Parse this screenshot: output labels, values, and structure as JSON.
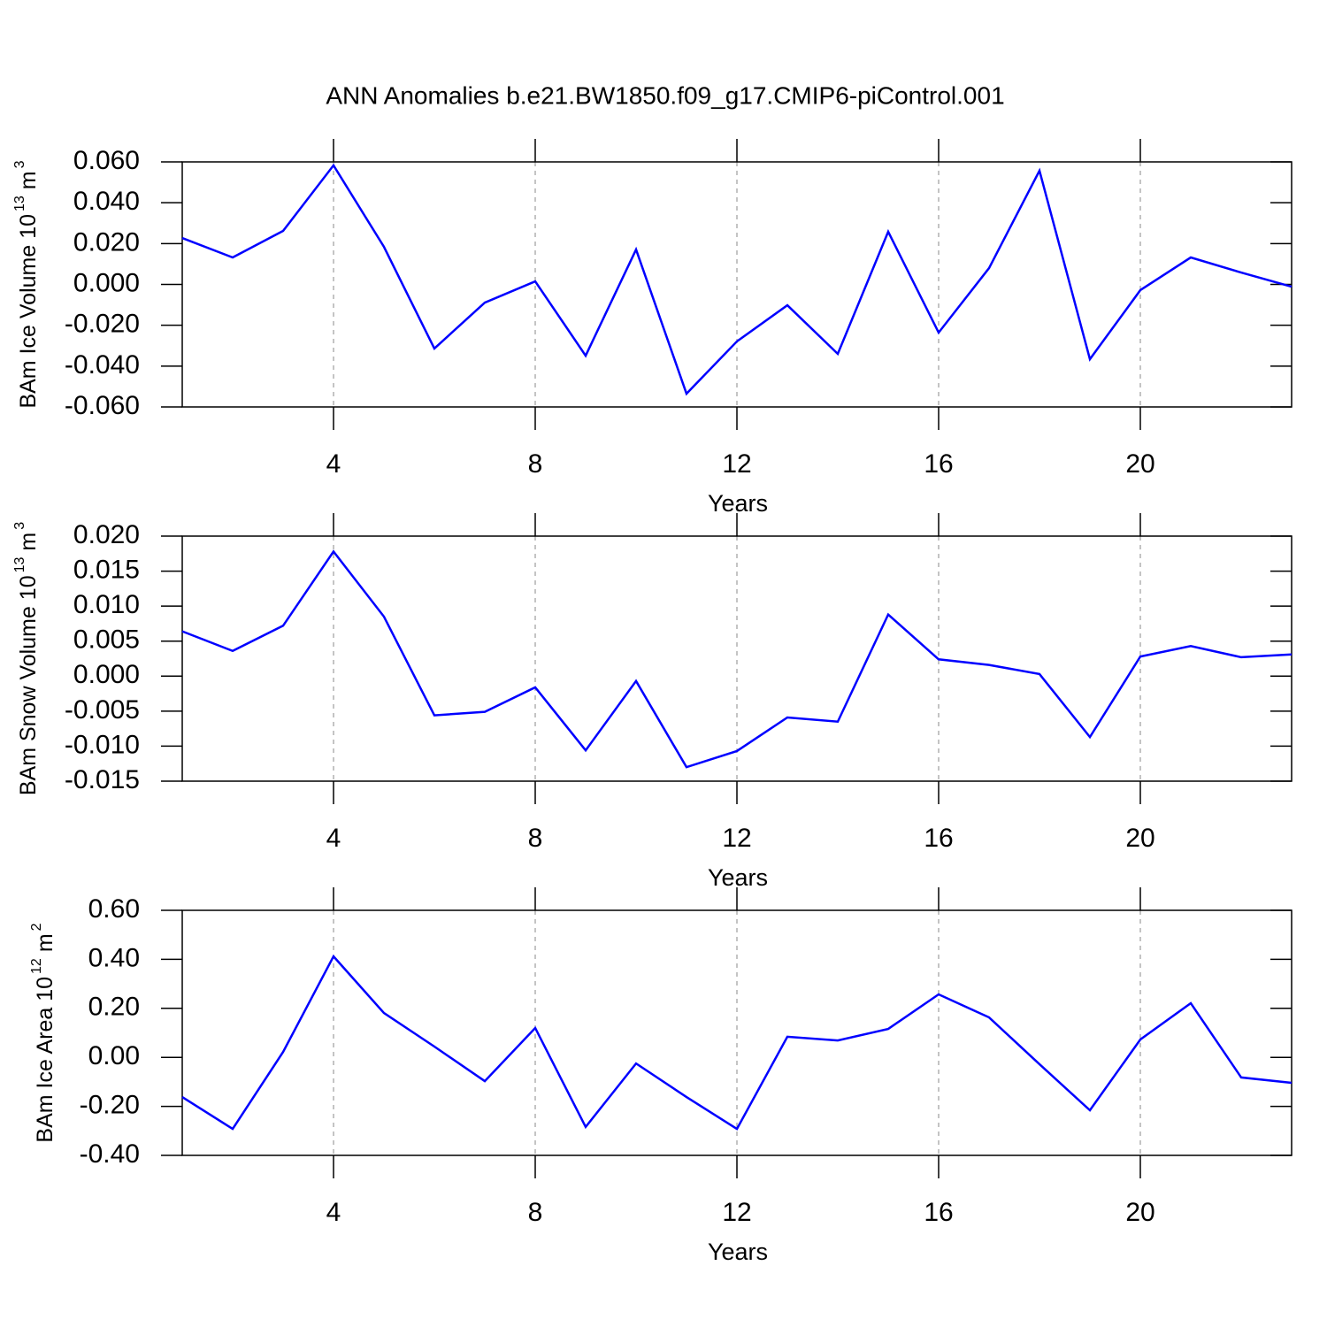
{
  "title": "ANN Anomalies b.e21.BW1850.f09_g17.CMIP6-piControl.001",
  "chart_data": [
    {
      "type": "line",
      "xlabel": "Years",
      "ylabel_parts": [
        "BAm Ice Volume 10",
        "13",
        "m",
        "3"
      ],
      "x": [
        1,
        2,
        3,
        4,
        5,
        6,
        7,
        8,
        9,
        10,
        11,
        12,
        13,
        14,
        15,
        16,
        17,
        18,
        19,
        20,
        21,
        22,
        23
      ],
      "series": [
        {
          "color": "#0000ff",
          "values": [
            0.0227,
            0.0132,
            0.0262,
            0.0583,
            0.0184,
            -0.0314,
            -0.0089,
            0.0015,
            -0.0349,
            0.0171,
            -0.0535,
            -0.0279,
            -0.0102,
            -0.034,
            0.0258,
            -0.0236,
            0.008,
            0.0557,
            -0.0366,
            -0.0028,
            0.0132,
            0.0058,
            -0.0011
          ]
        }
      ],
      "xlim": [
        1,
        23
      ],
      "xticks": [
        4,
        8,
        12,
        16,
        20
      ],
      "ylim": [
        -0.06,
        0.06
      ],
      "yticks": [
        {
          "value": -0.06,
          "label": "-0.060"
        },
        {
          "value": -0.04,
          "label": "-0.040"
        },
        {
          "value": -0.02,
          "label": "-0.020"
        },
        {
          "value": 0,
          "label": "0.000"
        },
        {
          "value": 0.02,
          "label": "0.020"
        },
        {
          "value": 0.04,
          "label": "0.040"
        },
        {
          "value": 0.06,
          "label": "0.060"
        }
      ],
      "grid": "x"
    },
    {
      "type": "line",
      "xlabel": "Years",
      "ylabel_parts": [
        "BAm Snow Volume 10",
        "13",
        "m",
        "3"
      ],
      "x": [
        1,
        2,
        3,
        4,
        5,
        6,
        7,
        8,
        9,
        10,
        11,
        12,
        13,
        14,
        15,
        16,
        17,
        18,
        19,
        20,
        21,
        22,
        23
      ],
      "series": [
        {
          "color": "#0000ff",
          "values": [
            0.0064,
            0.0036,
            0.0072,
            0.0178,
            0.0085,
            -0.0056,
            -0.0051,
            -0.0016,
            -0.0106,
            -0.0007,
            -0.013,
            -0.0107,
            -0.0059,
            -0.0065,
            0.0088,
            0.0024,
            0.0016,
            0.0003,
            -0.0087,
            0.0028,
            0.0043,
            0.0027,
            0.0031
          ]
        }
      ],
      "xlim": [
        1,
        23
      ],
      "xticks": [
        4,
        8,
        12,
        16,
        20
      ],
      "ylim": [
        -0.015,
        0.02
      ],
      "yticks": [
        {
          "value": -0.015,
          "label": "-0.015"
        },
        {
          "value": -0.01,
          "label": "-0.010"
        },
        {
          "value": -0.005,
          "label": "-0.005"
        },
        {
          "value": 0,
          "label": "0.000"
        },
        {
          "value": 0.005,
          "label": "0.005"
        },
        {
          "value": 0.01,
          "label": "0.010"
        },
        {
          "value": 0.015,
          "label": "0.015"
        },
        {
          "value": 0.02,
          "label": "0.020"
        }
      ],
      "grid": "x"
    },
    {
      "type": "line",
      "xlabel": "Years",
      "ylabel_parts": [
        "BAm Ice Area 10",
        "12",
        "m",
        "2"
      ],
      "x": [
        1,
        2,
        3,
        4,
        5,
        6,
        7,
        8,
        9,
        10,
        11,
        12,
        13,
        14,
        15,
        16,
        17,
        18,
        19,
        20,
        21,
        22,
        23
      ],
      "series": [
        {
          "color": "#0000ff",
          "values": [
            -0.162,
            -0.292,
            0.022,
            0.412,
            0.181,
            0.044,
            -0.097,
            0.12,
            -0.284,
            -0.025,
            -0.162,
            -0.292,
            0.084,
            0.069,
            0.116,
            0.257,
            0.163,
            -0.028,
            -0.216,
            0.073,
            0.221,
            -0.082,
            -0.104
          ]
        }
      ],
      "xlim": [
        1,
        23
      ],
      "xticks": [
        4,
        8,
        12,
        16,
        20
      ],
      "ylim": [
        -0.4,
        0.6
      ],
      "yticks": [
        {
          "value": -0.4,
          "label": "-0.40"
        },
        {
          "value": -0.2,
          "label": "-0.20"
        },
        {
          "value": 0,
          "label": "0.00"
        },
        {
          "value": 0.2,
          "label": "0.20"
        },
        {
          "value": 0.4,
          "label": "0.40"
        },
        {
          "value": 0.6,
          "label": "0.60"
        }
      ],
      "grid": "x"
    }
  ]
}
